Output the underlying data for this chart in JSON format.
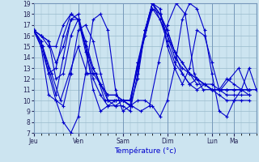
{
  "xlabel": "Température (°c)",
  "background_color": "#cce4f0",
  "line_color": "#0000cc",
  "grid_color": "#99bbcc",
  "ylim": [
    7,
    19
  ],
  "yticks": [
    7,
    8,
    9,
    10,
    11,
    12,
    13,
    14,
    15,
    16,
    17,
    18,
    19
  ],
  "day_labels": [
    "Jeu",
    "Ven",
    "Sam",
    "Dim",
    "Lun",
    "Ma"
  ],
  "day_x": [
    0.0,
    0.2,
    0.4,
    0.6,
    0.8,
    0.9
  ],
  "xlim": [
    0.0,
    1.0
  ],
  "series": [
    {
      "xs": [
        0.0,
        0.033,
        0.067,
        0.1,
        0.133,
        0.167,
        0.2,
        0.233,
        0.267,
        0.3,
        0.333,
        0.367,
        0.4,
        0.433,
        0.467,
        0.5,
        0.533,
        0.567,
        0.6,
        0.633,
        0.667,
        0.7,
        0.733,
        0.767,
        0.8,
        0.833,
        0.867,
        0.9,
        0.933,
        0.967,
        1.0
      ],
      "ys": [
        16.5,
        15.0,
        12.5,
        10.0,
        8.0,
        7.0,
        8.5,
        12.5,
        17.5,
        18.0,
        16.5,
        11.0,
        9.0,
        9.5,
        10.0,
        10.0,
        9.5,
        8.5,
        10.0,
        13.0,
        17.5,
        19.0,
        18.5,
        16.5,
        12.5,
        9.0,
        8.5,
        10.0,
        11.0,
        13.0,
        11.0
      ]
    },
    {
      "xs": [
        0.0,
        0.04,
        0.08,
        0.12,
        0.16,
        0.2,
        0.24,
        0.28,
        0.32,
        0.36,
        0.4,
        0.44,
        0.48,
        0.52,
        0.56,
        0.6,
        0.64,
        0.68,
        0.72,
        0.76,
        0.8,
        0.84,
        0.88,
        0.92,
        0.96,
        1.0
      ],
      "ys": [
        16.5,
        15.0,
        12.5,
        10.0,
        12.5,
        15.0,
        12.5,
        12.5,
        10.0,
        10.0,
        10.0,
        9.5,
        9.0,
        9.5,
        13.5,
        17.0,
        19.0,
        18.0,
        12.5,
        11.0,
        11.0,
        11.0,
        12.0,
        13.0,
        11.0,
        11.0
      ]
    },
    {
      "xs": [
        0.0,
        0.033,
        0.067,
        0.1,
        0.133,
        0.167,
        0.2,
        0.233,
        0.267,
        0.3,
        0.333,
        0.367,
        0.4,
        0.433,
        0.467,
        0.5,
        0.533,
        0.567,
        0.6,
        0.633,
        0.667,
        0.7,
        0.733,
        0.767,
        0.8,
        0.833,
        0.867,
        0.9,
        0.933,
        0.967
      ],
      "ys": [
        16.5,
        15.5,
        13.0,
        10.5,
        14.0,
        17.5,
        18.0,
        15.0,
        11.0,
        9.0,
        9.5,
        10.0,
        10.0,
        9.5,
        12.0,
        16.5,
        19.0,
        18.5,
        15.0,
        13.0,
        11.5,
        13.0,
        16.5,
        16.0,
        13.5,
        11.0,
        12.0,
        11.5,
        11.0,
        11.0
      ]
    },
    {
      "xs": [
        0.0,
        0.033,
        0.067,
        0.1,
        0.133,
        0.167,
        0.2,
        0.233,
        0.267,
        0.3,
        0.333,
        0.367,
        0.4,
        0.433,
        0.467,
        0.5,
        0.533,
        0.567,
        0.6,
        0.633,
        0.667,
        0.7,
        0.733,
        0.767,
        0.8,
        0.833,
        0.867,
        0.9,
        0.933,
        0.967
      ],
      "ys": [
        16.5,
        16.0,
        15.5,
        12.0,
        12.5,
        16.0,
        17.5,
        15.5,
        13.0,
        11.5,
        10.0,
        10.0,
        10.0,
        9.5,
        13.5,
        16.5,
        19.0,
        18.0,
        16.0,
        14.5,
        12.5,
        11.5,
        12.0,
        11.5,
        11.0,
        11.0,
        11.0,
        11.0,
        11.0,
        11.0
      ]
    },
    {
      "xs": [
        0.0,
        0.033,
        0.067,
        0.1,
        0.133,
        0.167,
        0.2,
        0.233,
        0.267,
        0.3,
        0.333,
        0.367,
        0.4,
        0.433,
        0.467,
        0.5,
        0.533,
        0.567,
        0.6,
        0.633,
        0.667,
        0.7,
        0.733,
        0.767,
        0.8,
        0.833,
        0.867,
        0.9,
        0.933,
        0.967
      ],
      "ys": [
        16.5,
        16.0,
        15.5,
        13.5,
        15.0,
        17.5,
        17.5,
        15.0,
        12.5,
        11.5,
        10.5,
        10.5,
        10.0,
        10.0,
        13.5,
        16.0,
        19.0,
        18.0,
        16.5,
        14.5,
        13.5,
        12.5,
        12.0,
        11.5,
        11.0,
        11.0,
        11.0,
        11.0,
        11.0,
        10.5
      ]
    },
    {
      "xs": [
        0.0,
        0.033,
        0.067,
        0.1,
        0.133,
        0.167,
        0.2,
        0.233,
        0.267,
        0.3,
        0.333,
        0.367,
        0.4,
        0.433,
        0.467,
        0.5,
        0.533,
        0.567,
        0.6,
        0.633,
        0.667,
        0.7,
        0.733,
        0.767,
        0.8,
        0.833,
        0.867,
        0.9,
        0.933,
        0.967
      ],
      "ys": [
        16.5,
        16.0,
        15.0,
        15.0,
        17.0,
        18.0,
        17.5,
        15.0,
        13.0,
        11.5,
        10.5,
        10.5,
        10.0,
        10.0,
        13.0,
        16.0,
        18.5,
        18.0,
        16.5,
        14.5,
        13.5,
        12.5,
        12.0,
        11.5,
        11.0,
        11.0,
        10.5,
        10.5,
        10.5,
        10.5
      ]
    },
    {
      "xs": [
        0.0,
        0.033,
        0.067,
        0.1,
        0.133,
        0.167,
        0.2,
        0.233,
        0.267,
        0.3,
        0.333,
        0.367,
        0.4,
        0.433,
        0.467,
        0.5,
        0.533,
        0.567,
        0.6,
        0.633,
        0.667,
        0.7,
        0.733,
        0.767,
        0.8,
        0.833,
        0.867,
        0.9,
        0.933,
        0.967
      ],
      "ys": [
        16.5,
        15.5,
        12.5,
        13.0,
        16.0,
        18.0,
        17.5,
        14.5,
        12.0,
        10.5,
        9.5,
        9.5,
        9.5,
        9.0,
        12.5,
        16.5,
        19.0,
        17.5,
        16.0,
        14.0,
        13.0,
        12.5,
        11.5,
        11.5,
        11.0,
        10.5,
        10.0,
        10.0,
        10.0,
        10.0
      ]
    },
    {
      "xs": [
        0.0,
        0.033,
        0.067,
        0.1,
        0.133,
        0.167,
        0.2,
        0.233,
        0.267,
        0.3,
        0.333,
        0.367,
        0.4,
        0.433,
        0.467,
        0.5,
        0.533,
        0.567,
        0.6,
        0.633,
        0.667,
        0.7,
        0.733,
        0.767,
        0.8,
        0.833,
        0.867,
        0.9,
        0.933,
        0.967
      ],
      "ys": [
        16.5,
        15.0,
        10.5,
        10.0,
        9.5,
        12.5,
        16.5,
        17.0,
        15.5,
        12.5,
        10.0,
        9.5,
        10.0,
        10.0,
        13.0,
        16.5,
        18.5,
        17.5,
        15.5,
        13.5,
        12.5,
        11.5,
        11.0,
        11.5,
        11.5,
        11.0,
        11.0,
        11.0,
        11.0,
        11.0
      ]
    }
  ]
}
